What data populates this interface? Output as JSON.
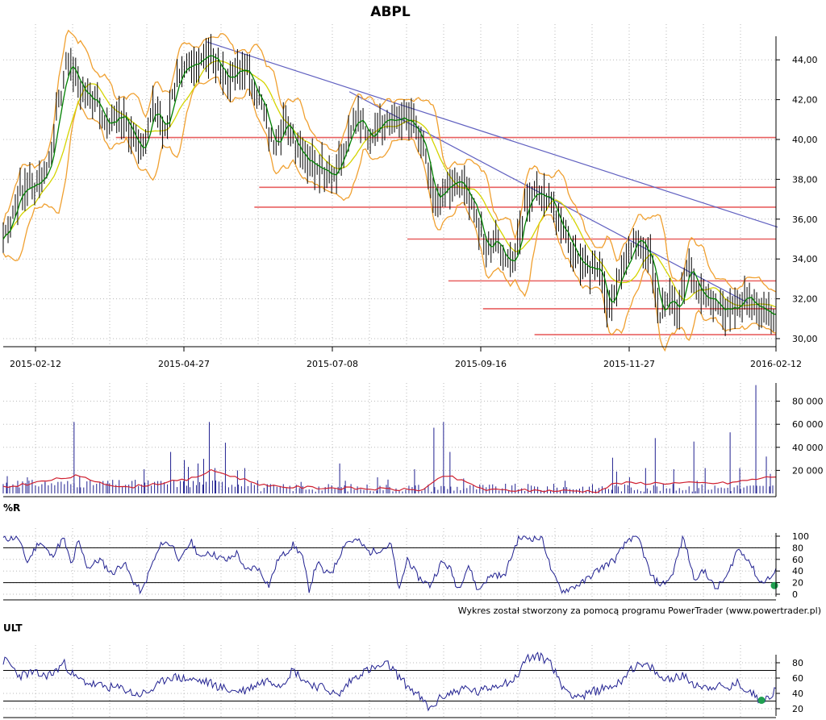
{
  "title": "ABPL",
  "credit": "Wykres został stworzony za pomocą programu PowerTrader (www.powertrader.pl)",
  "colors": {
    "grid": "#b8b8b8",
    "bars": "#000000",
    "ma_short": "#008000",
    "ma_long": "#d4d400",
    "bands": "#f0a030",
    "support": "#e86060",
    "trend": "#6060c0",
    "volume": "#202090",
    "volume_ma": "#d02030",
    "osc": "#202090",
    "marker": "#20a050"
  },
  "chart_data": [
    {
      "type": "line",
      "name": "price",
      "title": "ABPL",
      "x_ticks": [
        "2015-02-12",
        "2015-04-27",
        "2015-07-08",
        "2015-09-16",
        "2015-11-27",
        "2016-02-12"
      ],
      "y_ticks": [
        "44,00",
        "42,00",
        "40,00",
        "38,00",
        "36,00",
        "34,00",
        "32,00",
        "30,00"
      ],
      "ylim": [
        29.6,
        45.0
      ],
      "grid": true,
      "close_keypoints": [
        [
          0,
          35.0
        ],
        [
          20,
          37.3
        ],
        [
          40,
          37.8
        ],
        [
          55,
          38.4
        ],
        [
          65,
          40.8
        ],
        [
          80,
          44.0
        ],
        [
          100,
          42.3
        ],
        [
          115,
          42.0
        ],
        [
          130,
          40.6
        ],
        [
          145,
          41.3
        ],
        [
          160,
          40.4
        ],
        [
          175,
          39.3
        ],
        [
          185,
          41.7
        ],
        [
          200,
          40.4
        ],
        [
          215,
          43.0
        ],
        [
          235,
          43.6
        ],
        [
          250,
          44.4
        ],
        [
          265,
          43.9
        ],
        [
          280,
          43.0
        ],
        [
          300,
          43.6
        ],
        [
          320,
          41.9
        ],
        [
          335,
          39.7
        ],
        [
          350,
          40.9
        ],
        [
          365,
          39.7
        ],
        [
          380,
          38.9
        ],
        [
          395,
          38.7
        ],
        [
          410,
          38.2
        ],
        [
          425,
          39.5
        ],
        [
          440,
          41.3
        ],
        [
          455,
          40.2
        ],
        [
          470,
          40.9
        ],
        [
          490,
          41.0
        ],
        [
          505,
          40.8
        ],
        [
          520,
          39.9
        ],
        [
          535,
          36.9
        ],
        [
          550,
          37.5
        ],
        [
          565,
          37.9
        ],
        [
          580,
          37.1
        ],
        [
          590,
          35.9
        ],
        [
          600,
          34.5
        ],
        [
          610,
          35.1
        ],
        [
          625,
          34.0
        ],
        [
          635,
          33.8
        ],
        [
          650,
          36.9
        ],
        [
          665,
          37.4
        ],
        [
          680,
          37.1
        ],
        [
          695,
          35.4
        ],
        [
          710,
          34.4
        ],
        [
          725,
          33.5
        ],
        [
          740,
          33.7
        ],
        [
          752,
          31.3
        ],
        [
          765,
          32.9
        ],
        [
          780,
          34.6
        ],
        [
          792,
          35.0
        ],
        [
          805,
          33.9
        ],
        [
          815,
          31.1
        ],
        [
          825,
          31.9
        ],
        [
          840,
          31.5
        ],
        [
          850,
          33.8
        ],
        [
          860,
          32.6
        ],
        [
          875,
          32.1
        ],
        [
          890,
          31.4
        ],
        [
          905,
          31.6
        ],
        [
          920,
          32.0
        ],
        [
          940,
          31.7
        ],
        [
          955,
          31.2
        ]
      ],
      "support_levels": [
        {
          "value": 40.1,
          "from_index": 140
        },
        {
          "value": 37.6,
          "from_index": 318
        },
        {
          "value": 36.6,
          "from_index": 312
        },
        {
          "value": 35.0,
          "from_index": 502
        },
        {
          "value": 32.9,
          "from_index": 553
        },
        {
          "value": 31.5,
          "from_index": 596
        },
        {
          "value": 30.2,
          "from_index": 660
        }
      ],
      "trend_lines": [
        {
          "from": [
            253,
            44.9
          ],
          "to": [
            962,
            35.6
          ]
        },
        {
          "from": [
            430,
            42.4
          ],
          "to": [
            925,
            31.8
          ]
        }
      ]
    },
    {
      "type": "bar",
      "name": "volume",
      "y_ticks": [
        "80 000",
        "60 000",
        "40 000",
        "20 000"
      ],
      "ylim": [
        0,
        95000
      ],
      "grid": true,
      "spikes": [
        [
          5,
          15000
        ],
        [
          18,
          11000
        ],
        [
          30,
          14000
        ],
        [
          52,
          10000
        ],
        [
          88,
          62000
        ],
        [
          95,
          15000
        ],
        [
          130,
          11000
        ],
        [
          175,
          21000
        ],
        [
          208,
          36000
        ],
        [
          225,
          29000
        ],
        [
          230,
          23000
        ],
        [
          242,
          26000
        ],
        [
          249,
          30000
        ],
        [
          256,
          62000
        ],
        [
          263,
          22000
        ],
        [
          276,
          44000
        ],
        [
          291,
          20000
        ],
        [
          300,
          22000
        ],
        [
          328,
          8000
        ],
        [
          370,
          10000
        ],
        [
          418,
          26000
        ],
        [
          425,
          11000
        ],
        [
          465,
          14000
        ],
        [
          478,
          12000
        ],
        [
          511,
          21000
        ],
        [
          535,
          57000
        ],
        [
          547,
          62000
        ],
        [
          555,
          36000
        ],
        [
          572,
          13000
        ],
        [
          698,
          11000
        ],
        [
          757,
          31000
        ],
        [
          762,
          19000
        ],
        [
          778,
          14000
        ],
        [
          798,
          22000
        ],
        [
          810,
          48000
        ],
        [
          833,
          21000
        ],
        [
          858,
          45000
        ],
        [
          862,
          11000
        ],
        [
          872,
          22000
        ],
        [
          903,
          53000
        ],
        [
          915,
          22000
        ],
        [
          935,
          94000
        ],
        [
          948,
          32000
        ],
        [
          953,
          17000
        ]
      ]
    },
    {
      "type": "line",
      "name": "%R",
      "title": "%R",
      "y_ticks": [
        "100",
        "80",
        "60",
        "40",
        "20",
        "0"
      ],
      "ylim": [
        0,
        100
      ],
      "levels": [
        80,
        20
      ],
      "keypoints": [
        [
          5,
          96
        ],
        [
          18,
          98
        ],
        [
          30,
          55
        ],
        [
          45,
          92
        ],
        [
          60,
          65
        ],
        [
          75,
          97
        ],
        [
          85,
          48
        ],
        [
          93,
          92
        ],
        [
          105,
          45
        ],
        [
          120,
          60
        ],
        [
          135,
          35
        ],
        [
          150,
          55
        ],
        [
          160,
          25
        ],
        [
          172,
          3
        ],
        [
          185,
          52
        ],
        [
          198,
          90
        ],
        [
          210,
          85
        ],
        [
          220,
          56
        ],
        [
          233,
          92
        ],
        [
          246,
          60
        ],
        [
          253,
          74
        ],
        [
          266,
          65
        ],
        [
          278,
          58
        ],
        [
          291,
          72
        ],
        [
          300,
          40
        ],
        [
          315,
          48
        ],
        [
          330,
          15
        ],
        [
          342,
          62
        ],
        [
          350,
          70
        ],
        [
          360,
          85
        ],
        [
          371,
          68
        ],
        [
          380,
          8
        ],
        [
          390,
          55
        ],
        [
          400,
          35
        ],
        [
          410,
          42
        ],
        [
          425,
          90
        ],
        [
          440,
          93
        ],
        [
          455,
          72
        ],
        [
          470,
          78
        ],
        [
          482,
          85
        ],
        [
          492,
          5
        ],
        [
          502,
          62
        ],
        [
          515,
          30
        ],
        [
          530,
          15
        ],
        [
          545,
          56
        ],
        [
          555,
          45
        ],
        [
          565,
          8
        ],
        [
          578,
          50
        ],
        [
          590,
          5
        ],
        [
          598,
          22
        ],
        [
          610,
          35
        ],
        [
          622,
          30
        ],
        [
          640,
          97
        ],
        [
          655,
          97
        ],
        [
          670,
          96
        ],
        [
          682,
          35
        ],
        [
          695,
          5
        ],
        [
          707,
          12
        ],
        [
          720,
          20
        ],
        [
          735,
          38
        ],
        [
          748,
          50
        ],
        [
          760,
          60
        ],
        [
          778,
          97
        ],
        [
          790,
          94
        ],
        [
          805,
          30
        ],
        [
          818,
          16
        ],
        [
          830,
          30
        ],
        [
          845,
          99
        ],
        [
          858,
          28
        ],
        [
          872,
          40
        ],
        [
          885,
          8
        ],
        [
          900,
          32
        ],
        [
          912,
          78
        ],
        [
          925,
          62
        ],
        [
          940,
          20
        ],
        [
          955,
          30
        ],
        [
          962,
          45
        ]
      ],
      "marker": [
        958,
        15
      ]
    },
    {
      "type": "line",
      "name": "ULT",
      "title": "ULT",
      "y_ticks": [
        "80",
        "60",
        "40",
        "20"
      ],
      "ylim": [
        15,
        95
      ],
      "levels": [
        70,
        30
      ],
      "keypoints": [
        [
          5,
          82
        ],
        [
          20,
          63
        ],
        [
          35,
          67
        ],
        [
          50,
          63
        ],
        [
          62,
          66
        ],
        [
          75,
          80
        ],
        [
          90,
          60
        ],
        [
          110,
          52
        ],
        [
          130,
          48
        ],
        [
          150,
          46
        ],
        [
          165,
          38
        ],
        [
          178,
          41
        ],
        [
          190,
          48
        ],
        [
          205,
          62
        ],
        [
          220,
          60
        ],
        [
          240,
          57
        ],
        [
          255,
          54
        ],
        [
          270,
          48
        ],
        [
          285,
          43
        ],
        [
          300,
          44
        ],
        [
          315,
          52
        ],
        [
          330,
          58
        ],
        [
          345,
          51
        ],
        [
          360,
          71
        ],
        [
          375,
          56
        ],
        [
          388,
          50
        ],
        [
          402,
          46
        ],
        [
          416,
          36
        ],
        [
          430,
          55
        ],
        [
          446,
          68
        ],
        [
          462,
          73
        ],
        [
          478,
          78
        ],
        [
          488,
          66
        ],
        [
          500,
          52
        ],
        [
          515,
          38
        ],
        [
          530,
          19
        ],
        [
          545,
          36
        ],
        [
          560,
          42
        ],
        [
          575,
          47
        ],
        [
          590,
          41
        ],
        [
          605,
          48
        ],
        [
          620,
          54
        ],
        [
          635,
          57
        ],
        [
          650,
          86
        ],
        [
          665,
          88
        ],
        [
          680,
          82
        ],
        [
          692,
          52
        ],
        [
          705,
          40
        ],
        [
          720,
          36
        ],
        [
          735,
          43
        ],
        [
          750,
          48
        ],
        [
          765,
          53
        ],
        [
          778,
          72
        ],
        [
          790,
          76
        ],
        [
          805,
          74
        ],
        [
          818,
          58
        ],
        [
          830,
          61
        ],
        [
          845,
          62
        ],
        [
          858,
          53
        ],
        [
          872,
          48
        ],
        [
          885,
          50
        ],
        [
          900,
          46
        ],
        [
          912,
          53
        ],
        [
          925,
          44
        ],
        [
          940,
          32
        ],
        [
          950,
          34
        ],
        [
          962,
          47
        ]
      ],
      "marker": [
        942,
        31
      ]
    }
  ]
}
